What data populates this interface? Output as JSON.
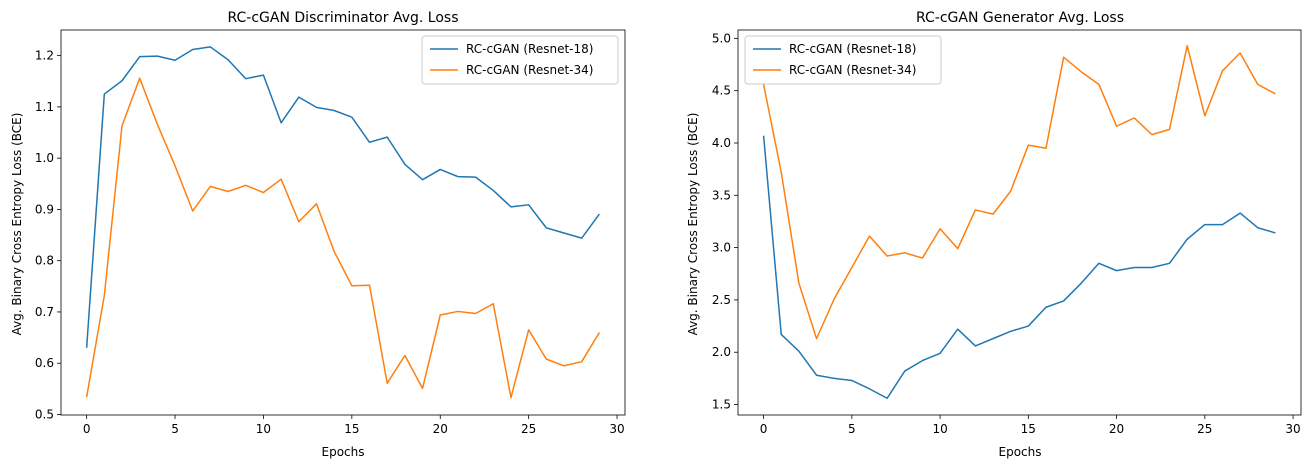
{
  "colors": {
    "series1": "#1f77b4",
    "series2": "#ff7f0e"
  },
  "chart_data": [
    {
      "type": "line",
      "title": "RC-cGAN Discriminator Avg. Loss",
      "xlabel": "Epochs",
      "ylabel": "Avg. Binary Cross Entropy Loss (BCE)",
      "xlim": [
        -1.45,
        30.45
      ],
      "ylim": [
        0.499,
        1.25
      ],
      "xticks": [
        0,
        5,
        10,
        15,
        20,
        25,
        30
      ],
      "xtick_labels": [
        "0",
        "5",
        "10",
        "15",
        "20",
        "25",
        "30"
      ],
      "yticks": [
        0.5,
        0.6,
        0.7,
        0.8,
        0.9,
        1.0,
        1.1,
        1.2
      ],
      "ytick_labels": [
        "0.5",
        "0.6",
        "0.7",
        "0.8",
        "0.9",
        "1.0",
        "1.1",
        "1.2"
      ],
      "legend": "top-right",
      "grid": false,
      "x": [
        0,
        1,
        2,
        3,
        4,
        5,
        6,
        7,
        8,
        9,
        10,
        11,
        12,
        13,
        14,
        15,
        16,
        17,
        18,
        19,
        20,
        21,
        22,
        23,
        24,
        25,
        26,
        27,
        28,
        29
      ],
      "series": [
        {
          "name": "RC-cGAN (Resnet-18)",
          "color": "#1f77b4",
          "values": [
            0.63,
            1.125,
            1.151,
            1.198,
            1.199,
            1.191,
            1.212,
            1.217,
            1.192,
            1.155,
            1.162,
            1.069,
            1.119,
            1.099,
            1.093,
            1.08,
            1.031,
            1.041,
            0.988,
            0.958,
            0.978,
            0.964,
            0.963,
            0.937,
            0.905,
            0.909,
            0.864,
            0.854,
            0.844,
            0.891
          ]
        },
        {
          "name": "RC-cGAN (Resnet-34)",
          "color": "#ff7f0e",
          "values": [
            0.534,
            0.732,
            1.063,
            1.156,
            1.066,
            0.985,
            0.897,
            0.945,
            0.935,
            0.947,
            0.933,
            0.959,
            0.876,
            0.911,
            0.818,
            0.751,
            0.752,
            0.561,
            0.615,
            0.551,
            0.694,
            0.701,
            0.697,
            0.716,
            0.533,
            0.665,
            0.608,
            0.595,
            0.603,
            0.66
          ]
        }
      ]
    },
    {
      "type": "line",
      "title": "RC-cGAN Generator Avg. Loss",
      "xlabel": "Epochs",
      "ylabel": "Avg. Binary Cross Entropy Loss (BCE)",
      "xlim": [
        -1.45,
        30.45
      ],
      "ylim": [
        1.4,
        5.08
      ],
      "xticks": [
        0,
        5,
        10,
        15,
        20,
        25,
        30
      ],
      "xtick_labels": [
        "0",
        "5",
        "10",
        "15",
        "20",
        "25",
        "30"
      ],
      "yticks": [
        1.5,
        2.0,
        2.5,
        3.0,
        3.5,
        4.0,
        4.5,
        5.0
      ],
      "ytick_labels": [
        "1.5",
        "2.0",
        "2.5",
        "3.0",
        "3.5",
        "4.0",
        "4.5",
        "5.0"
      ],
      "legend": "top-left",
      "grid": false,
      "x": [
        0,
        1,
        2,
        3,
        4,
        5,
        6,
        7,
        8,
        9,
        10,
        11,
        12,
        13,
        14,
        15,
        16,
        17,
        18,
        19,
        20,
        21,
        22,
        23,
        24,
        25,
        26,
        27,
        28,
        29
      ],
      "series": [
        {
          "name": "RC-cGAN (Resnet-18)",
          "color": "#1f77b4",
          "values": [
            4.07,
            2.17,
            2.01,
            1.78,
            1.75,
            1.73,
            1.65,
            1.56,
            1.82,
            1.92,
            1.99,
            2.22,
            2.06,
            2.13,
            2.2,
            2.25,
            2.43,
            2.49,
            2.66,
            2.85,
            2.78,
            2.81,
            2.81,
            2.85,
            3.08,
            3.22,
            3.22,
            3.33,
            3.19,
            3.14
          ]
        },
        {
          "name": "RC-cGAN (Resnet-34)",
          "color": "#ff7f0e",
          "values": [
            4.56,
            3.72,
            2.66,
            2.13,
            2.51,
            2.81,
            3.11,
            2.92,
            2.95,
            2.9,
            3.18,
            2.99,
            3.36,
            3.32,
            3.54,
            3.98,
            3.95,
            4.82,
            4.68,
            4.56,
            4.16,
            4.24,
            4.08,
            4.13,
            4.93,
            4.26,
            4.69,
            4.86,
            4.56,
            4.47
          ]
        }
      ]
    }
  ]
}
